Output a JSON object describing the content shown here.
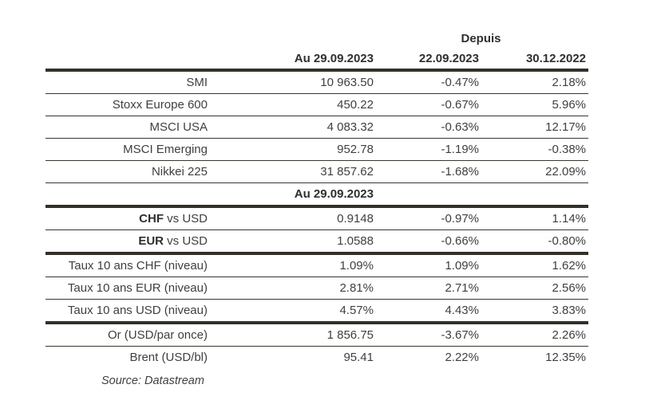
{
  "table": {
    "depuis_label": "Depuis",
    "columns": [
      "Au 29.09.2023",
      "22.09.2023",
      "30.12.2022"
    ],
    "section_header": "Au 29.09.2023",
    "rows": [
      {
        "label_bold": "",
        "label_rest": "SMI",
        "v1": "10 963.50",
        "v2": "-0.47%",
        "v3": "2.18%"
      },
      {
        "label_bold": "",
        "label_rest": "Stoxx Europe 600",
        "v1": "450.22",
        "v2": "-0.67%",
        "v3": "5.96%"
      },
      {
        "label_bold": "",
        "label_rest": "MSCI USA",
        "v1": "4 083.32",
        "v2": "-0.63%",
        "v3": "12.17%"
      },
      {
        "label_bold": "",
        "label_rest": "MSCI Emerging",
        "v1": "952.78",
        "v2": "-1.19%",
        "v3": "-0.38%"
      },
      {
        "label_bold": "",
        "label_rest": "Nikkei 225",
        "v1": "31 857.62",
        "v2": "-1.68%",
        "v3": "22.09%"
      },
      {
        "label_bold": "CHF",
        "label_rest": " vs USD",
        "v1": "0.9148",
        "v2": "-0.97%",
        "v3": "1.14%"
      },
      {
        "label_bold": "EUR",
        "label_rest": " vs USD",
        "v1": "1.0588",
        "v2": "-0.66%",
        "v3": "-0.80%"
      },
      {
        "label_bold": "",
        "label_rest": "Taux 10 ans CHF (niveau)",
        "v1": "1.09%",
        "v2": "1.09%",
        "v3": "1.62%"
      },
      {
        "label_bold": "",
        "label_rest": "Taux 10 ans EUR (niveau)",
        "v1": "2.81%",
        "v2": "2.71%",
        "v3": "2.56%"
      },
      {
        "label_bold": "",
        "label_rest": "Taux 10 ans USD (niveau)",
        "v1": "4.57%",
        "v2": "4.43%",
        "v3": "3.83%"
      },
      {
        "label_bold": "",
        "label_rest": "Or (USD/par once)",
        "v1": "1 856.75",
        "v2": "-3.67%",
        "v3": "2.26%"
      },
      {
        "label_bold": "",
        "label_rest": "Brent (USD/bl)",
        "v1": "95.41",
        "v2": "2.22%",
        "v3": "12.35%"
      }
    ],
    "source": "Source: Datastream"
  }
}
